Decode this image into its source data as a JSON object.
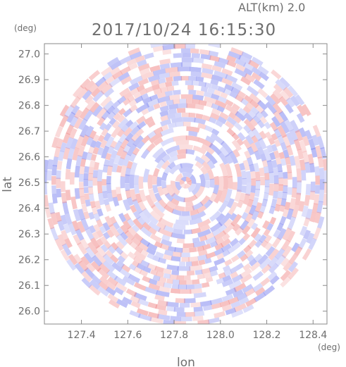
{
  "header": {
    "altitude_label": "ALT(km)  2.0",
    "timestamp": "2017/10/24 16:15:30"
  },
  "chart_data": {
    "type": "heatmap",
    "title": "2017/10/24 16:15:30",
    "xlabel": "lon",
    "ylabel": "lat",
    "x_unit": "(deg)",
    "y_unit": "(deg)",
    "xlim": [
      127.24,
      128.46
    ],
    "ylim": [
      25.95,
      27.04
    ],
    "x_ticks": [
      "127.4",
      "127.6",
      "127.8",
      "128.0",
      "128.2",
      "128.4"
    ],
    "y_ticks": [
      "26.0",
      "26.1",
      "26.2",
      "26.3",
      "26.4",
      "26.5",
      "26.6",
      "26.7",
      "26.8",
      "26.9",
      "27.0"
    ],
    "center": {
      "lon": 127.85,
      "lat": 26.5
    },
    "colormap": {
      "negative": "#7f86f0",
      "zero": "#ffffff",
      "positive": "#f08a8a"
    },
    "grid": false
  }
}
